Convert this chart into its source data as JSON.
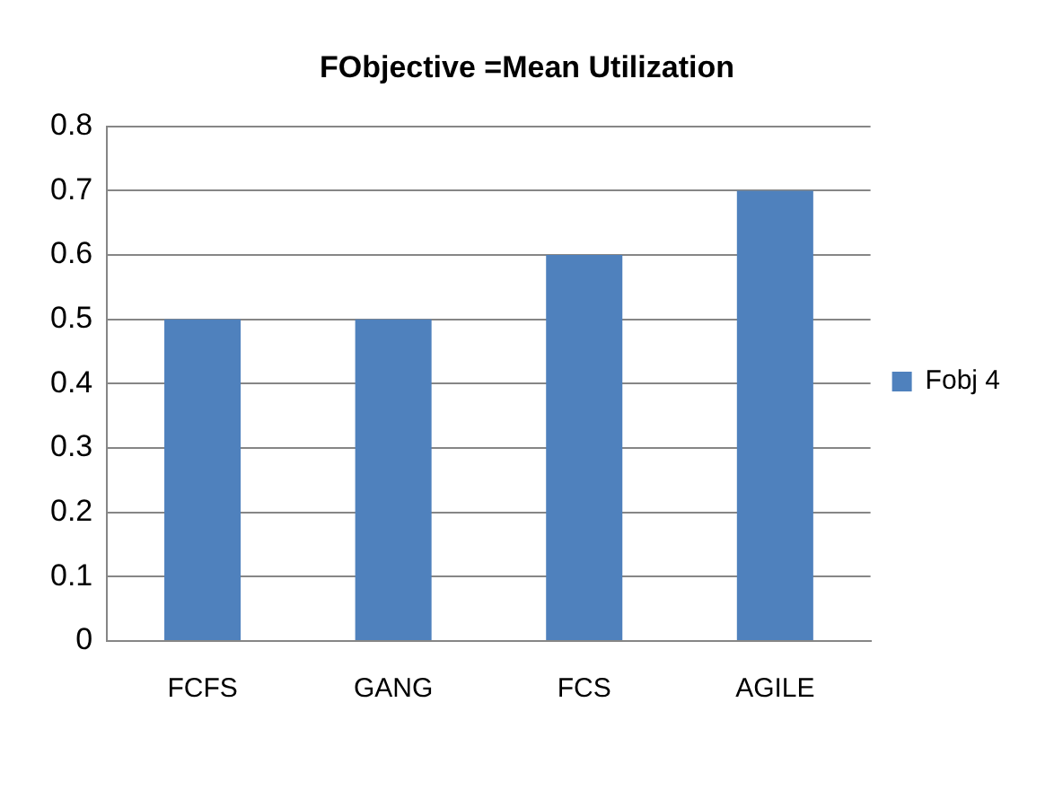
{
  "chart_data": {
    "type": "bar",
    "title": "FObjective =Mean Utilization",
    "categories": [
      "FCFS",
      "GANG",
      "FCS",
      "AGILE"
    ],
    "series": [
      {
        "name": "Fobj 4",
        "color": "#4f81bd",
        "values": [
          0.5,
          0.5,
          0.6,
          0.7
        ]
      }
    ],
    "ylim": [
      0,
      0.8
    ],
    "yticks": [
      0,
      0.1,
      0.2,
      0.3,
      0.4,
      0.5,
      0.6,
      0.7,
      0.8
    ],
    "grid": "y",
    "legend": "right"
  }
}
